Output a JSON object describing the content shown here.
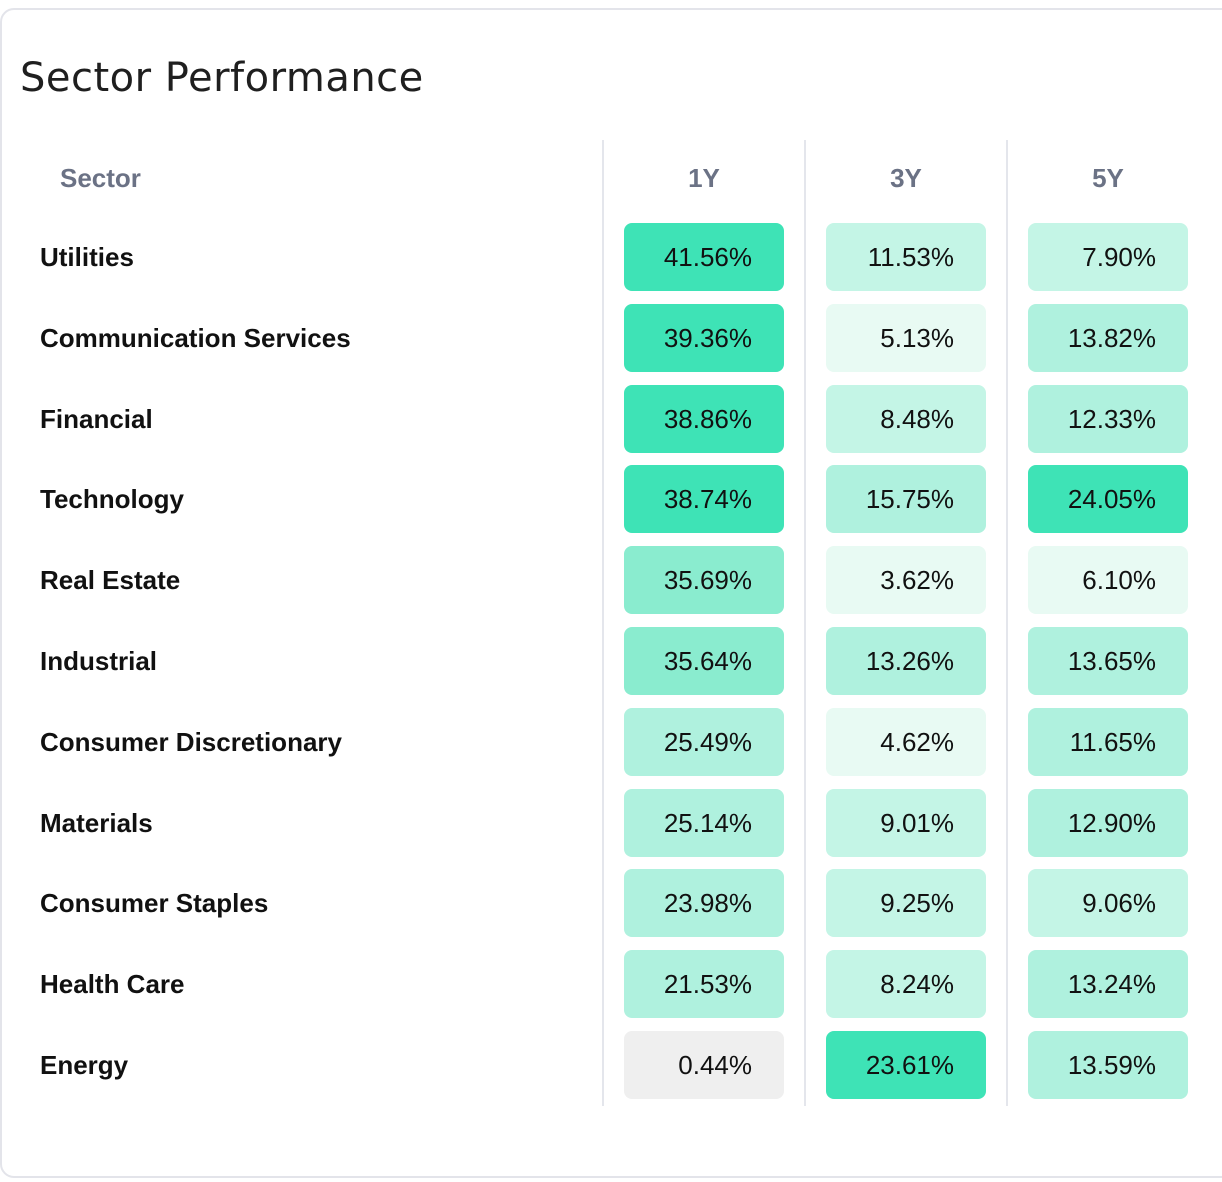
{
  "title": "Sector Performance",
  "headers": {
    "sector": "Sector",
    "periods": [
      "1Y",
      "3Y",
      "5Y"
    ]
  },
  "colors": {
    "level_1": "#e8faf3",
    "level_2": "#c4f5e6",
    "level_3": "#aff1de",
    "level_4": "#8aeccf",
    "level_5": "#3ee3b6",
    "negative_neutral": "#efefef"
  },
  "rows": [
    {
      "sector": "Utilities",
      "values": [
        "41.56%",
        "11.53%",
        "7.90%"
      ],
      "shades": [
        "level_5",
        "level_2",
        "level_2"
      ]
    },
    {
      "sector": "Communication Services",
      "values": [
        "39.36%",
        "5.13%",
        "13.82%"
      ],
      "shades": [
        "level_5",
        "level_1",
        "level_3"
      ]
    },
    {
      "sector": "Financial",
      "values": [
        "38.86%",
        "8.48%",
        "12.33%"
      ],
      "shades": [
        "level_5",
        "level_2",
        "level_3"
      ]
    },
    {
      "sector": "Technology",
      "values": [
        "38.74%",
        "15.75%",
        "24.05%"
      ],
      "shades": [
        "level_5",
        "level_3",
        "level_5"
      ]
    },
    {
      "sector": "Real Estate",
      "values": [
        "35.69%",
        "3.62%",
        "6.10%"
      ],
      "shades": [
        "level_4",
        "level_1",
        "level_1"
      ]
    },
    {
      "sector": "Industrial",
      "values": [
        "35.64%",
        "13.26%",
        "13.65%"
      ],
      "shades": [
        "level_4",
        "level_3",
        "level_3"
      ]
    },
    {
      "sector": "Consumer Discretionary",
      "values": [
        "25.49%",
        "4.62%",
        "11.65%"
      ],
      "shades": [
        "level_3",
        "level_1",
        "level_3"
      ]
    },
    {
      "sector": "Materials",
      "values": [
        "25.14%",
        "9.01%",
        "12.90%"
      ],
      "shades": [
        "level_3",
        "level_2",
        "level_3"
      ]
    },
    {
      "sector": "Consumer Staples",
      "values": [
        "23.98%",
        "9.25%",
        "9.06%"
      ],
      "shades": [
        "level_3",
        "level_2",
        "level_2"
      ]
    },
    {
      "sector": "Health Care",
      "values": [
        "21.53%",
        "8.24%",
        "13.24%"
      ],
      "shades": [
        "level_3",
        "level_2",
        "level_3"
      ]
    },
    {
      "sector": "Energy",
      "values": [
        "0.44%",
        "23.61%",
        "13.59%"
      ],
      "shades": [
        "negative_neutral",
        "level_5",
        "level_3"
      ]
    }
  ]
}
